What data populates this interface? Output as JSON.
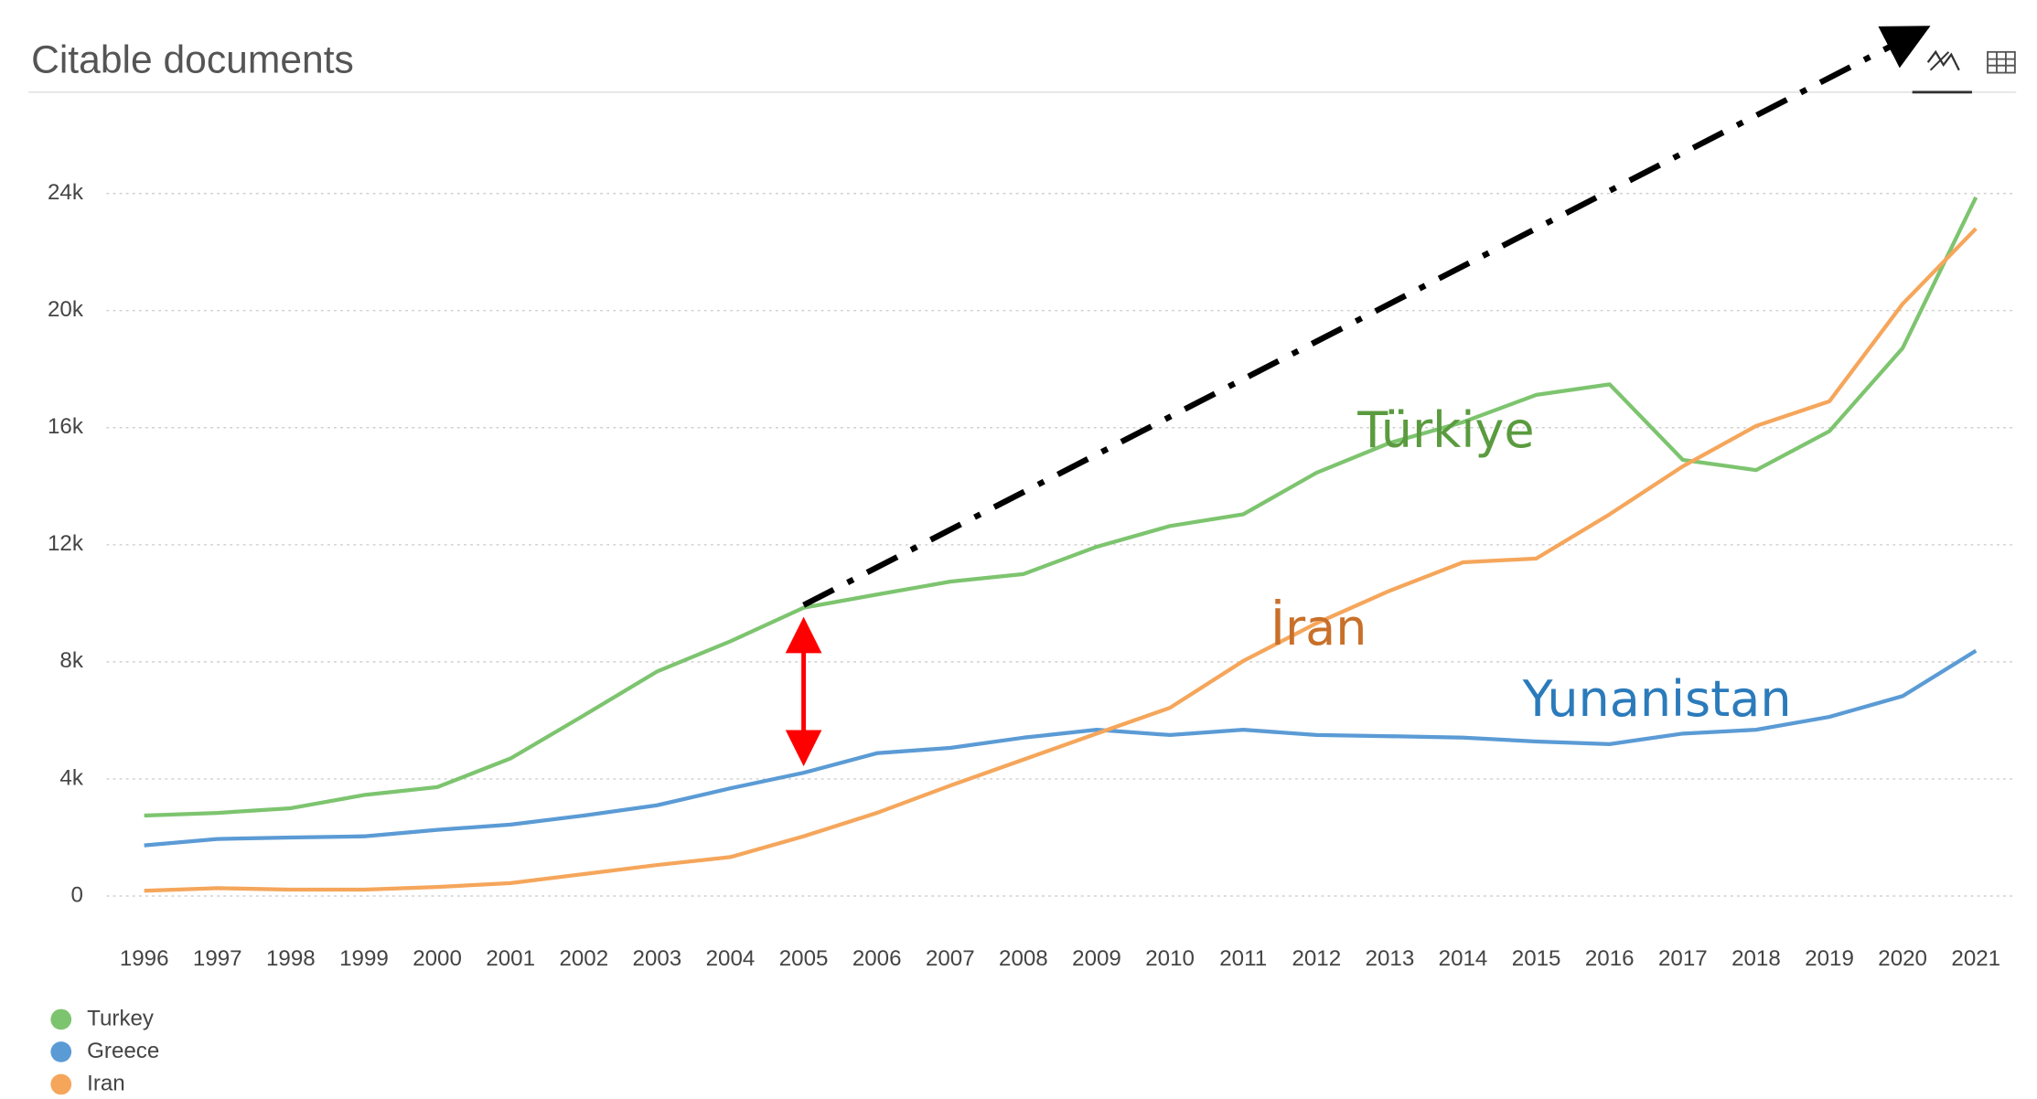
{
  "chart_data": {
    "type": "line",
    "title": "Citable documents",
    "categories": [
      "1996",
      "1997",
      "1998",
      "1999",
      "2000",
      "2001",
      "2002",
      "2003",
      "2004",
      "2005",
      "2006",
      "2007",
      "2008",
      "2009",
      "2010",
      "2011",
      "2012",
      "2013",
      "2014",
      "2015",
      "2016",
      "2017",
      "2018",
      "2019",
      "2020",
      "2021"
    ],
    "series": [
      {
        "name": "Turkey",
        "color": "#7dc46f",
        "values": [
          2750,
          2840,
          3000,
          3450,
          3720,
          4700,
          6170,
          7670,
          8700,
          9850,
          10300,
          10740,
          11000,
          11930,
          12640,
          13040,
          14460,
          15480,
          16190,
          17120,
          17480,
          14900,
          14550,
          15880,
          18720,
          23870
        ]
      },
      {
        "name": "Greece",
        "color": "#5b9bd5",
        "values": [
          1730,
          1950,
          2000,
          2040,
          2260,
          2440,
          2750,
          3100,
          3680,
          4210,
          4880,
          5060,
          5410,
          5680,
          5500,
          5680,
          5500,
          5460,
          5410,
          5280,
          5190,
          5550,
          5680,
          6120,
          6830,
          8380
        ]
      },
      {
        "name": "Iran",
        "color": "#f5a65b",
        "values": [
          180,
          270,
          220,
          220,
          310,
          440,
          750,
          1060,
          1330,
          2040,
          2840,
          3770,
          4660,
          5550,
          6430,
          8030,
          9320,
          10430,
          11400,
          11530,
          13040,
          14680,
          16060,
          16900,
          20230,
          22800
        ]
      }
    ],
    "ylim": [
      0,
      24000
    ],
    "yticks": [
      0,
      {
        "value": 4000,
        "label": "4k"
      },
      {
        "value": 8000,
        "label": "8k"
      },
      {
        "value": 12000,
        "label": "12k"
      },
      {
        "value": 16000,
        "label": "16k"
      },
      {
        "value": 20000,
        "label": "20k"
      },
      {
        "value": 24000,
        "label": "24k"
      }
    ],
    "grid": true,
    "legend": "bottom-left",
    "annotations": [
      {
        "text": "Türkiye",
        "color": "#5a9b3f"
      },
      {
        "text": "İran",
        "color": "#c8702a"
      },
      {
        "text": "Yunanistan",
        "color": "#2b7bbb"
      }
    ]
  }
}
